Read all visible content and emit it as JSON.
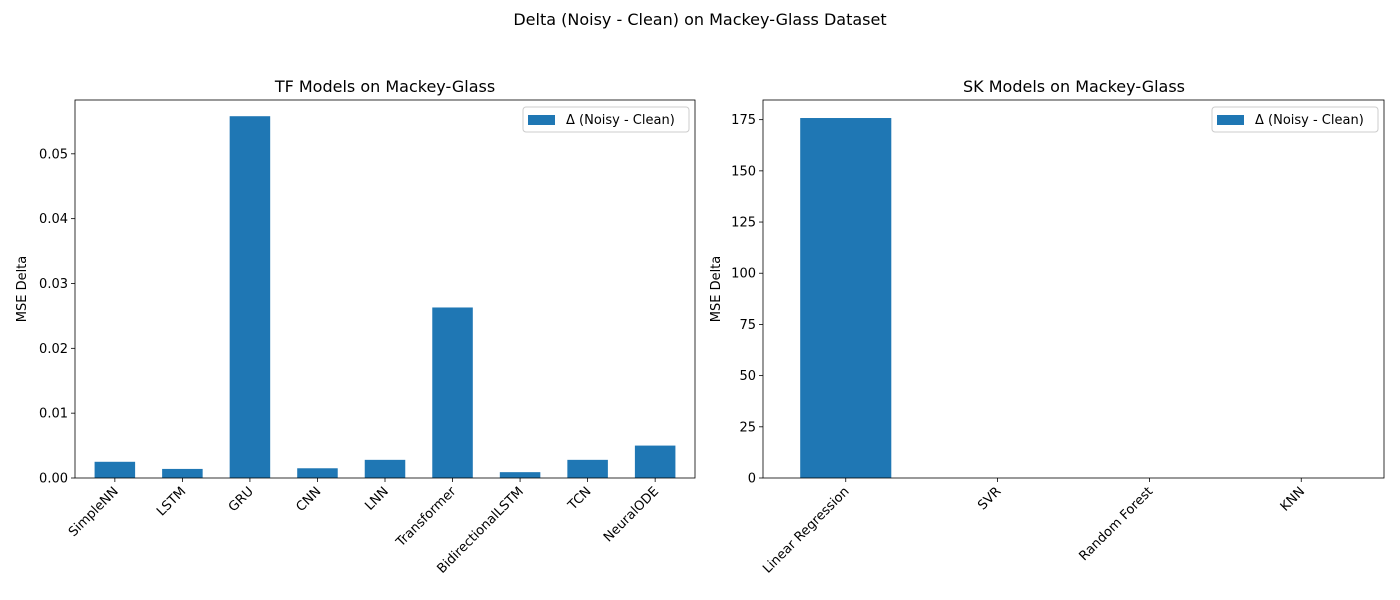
{
  "suptitle": "Delta (Noisy - Clean) on Mackey-Glass Dataset",
  "chart_data": [
    {
      "type": "bar",
      "title": "TF Models on Mackey-Glass",
      "xlabel": "",
      "ylabel": "MSE Delta",
      "categories": [
        "SimpleNN",
        "LSTM",
        "GRU",
        "CNN",
        "LNN",
        "Transformer",
        "BidirectionalLSTM",
        "TCN",
        "NeuralODE"
      ],
      "series": [
        {
          "name": "Δ (Noisy - Clean)",
          "values": [
            0.0025,
            0.0014,
            0.0558,
            0.0015,
            0.0028,
            0.0263,
            0.0009,
            0.0028,
            0.005
          ],
          "color": "#1f77b4"
        }
      ],
      "ylim": [
        0,
        0.0583
      ],
      "yticks": [
        0,
        0.01,
        0.02,
        0.03,
        0.04,
        0.05
      ],
      "ytick_labels": [
        "0.00",
        "0.01",
        "0.02",
        "0.03",
        "0.04",
        "0.05"
      ],
      "legend_position": "upper right",
      "grid": false
    },
    {
      "type": "bar",
      "title": "SK Models on Mackey-Glass",
      "xlabel": "",
      "ylabel": "MSE Delta",
      "categories": [
        "Linear Regression",
        "SVR",
        "Random Forest",
        "KNN"
      ],
      "series": [
        {
          "name": "Δ (Noisy - Clean)",
          "values": [
            175.8,
            0,
            0,
            0
          ],
          "color": "#1f77b4"
        }
      ],
      "ylim": [
        0,
        184.6
      ],
      "yticks": [
        0,
        25,
        50,
        75,
        100,
        125,
        150,
        175
      ],
      "ytick_labels": [
        "0",
        "25",
        "50",
        "75",
        "100",
        "125",
        "150",
        "175"
      ],
      "legend_position": "upper right",
      "grid": false
    }
  ]
}
